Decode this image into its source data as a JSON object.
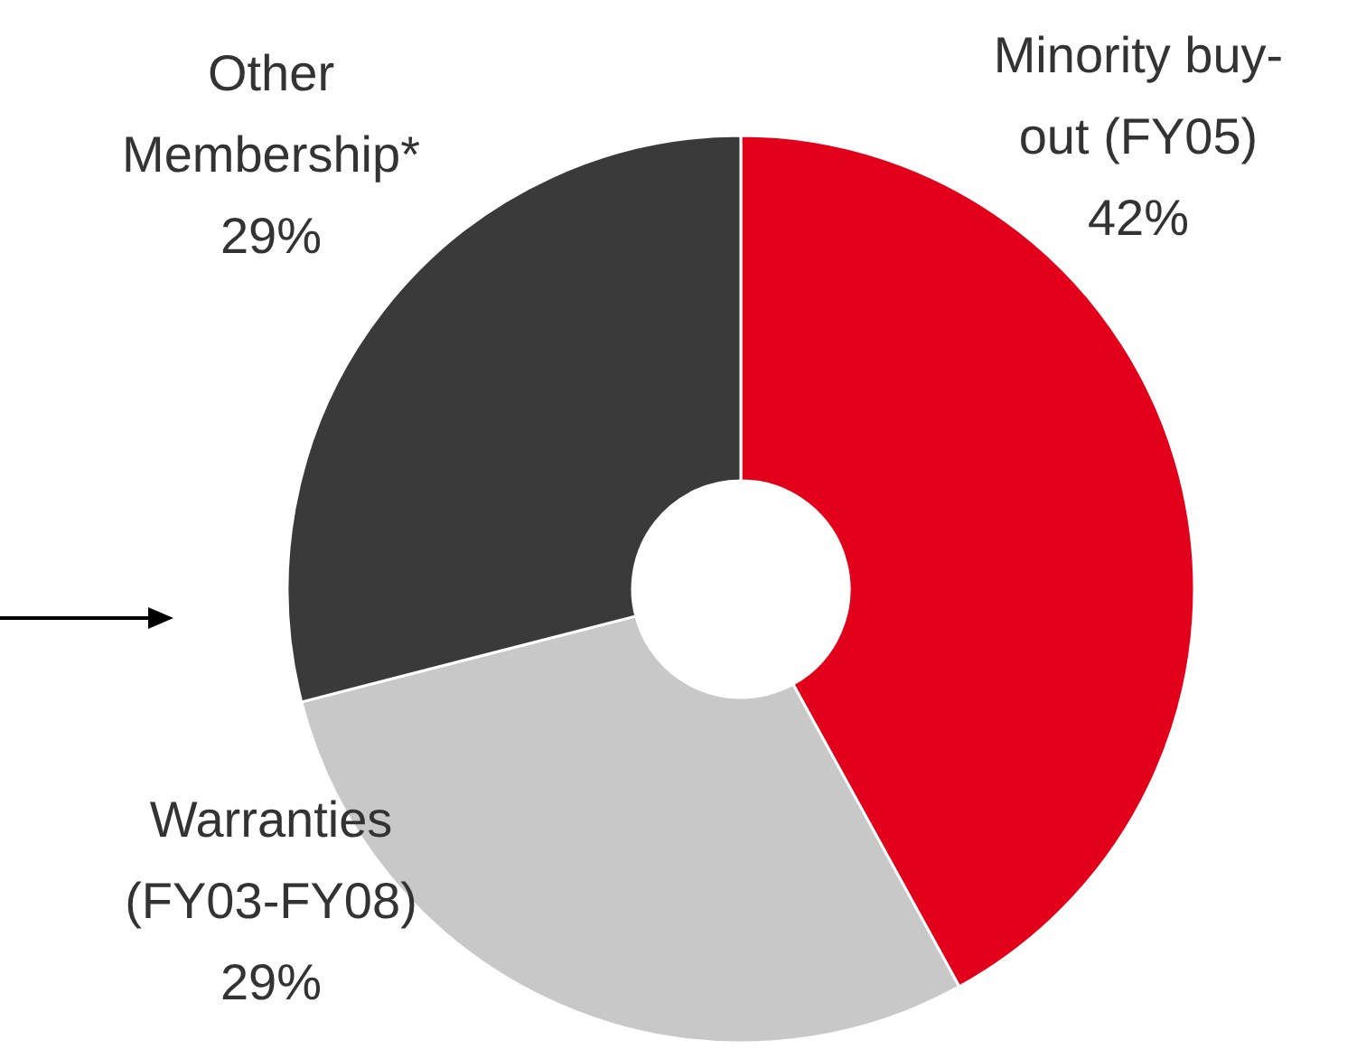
{
  "chart_data": {
    "type": "donut",
    "categories": [
      "Minority buy-out (FY05)",
      "Warranties (FY03-FY08)",
      "Other Membership*"
    ],
    "values": [
      42,
      29,
      29
    ],
    "colors": [
      "#e2001a",
      "#c8c8c8",
      "#3a3a3a"
    ],
    "value_labels": [
      "42%",
      "29%",
      "29%"
    ]
  }
}
